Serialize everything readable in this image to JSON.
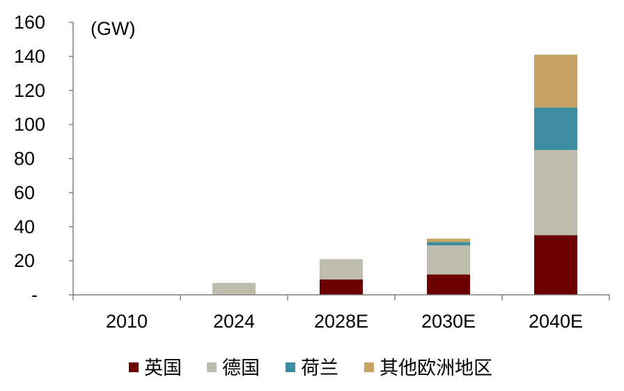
{
  "chart_data": {
    "type": "bar",
    "stacked": true,
    "unit_label": "(GW)",
    "categories": [
      "2010",
      "2024",
      "2028E",
      "2030E",
      "2040E"
    ],
    "y_tick_labels": [
      "-",
      "20",
      "40",
      "60",
      "80",
      "100",
      "120",
      "140",
      "160"
    ],
    "ylim": [
      0,
      160
    ],
    "grid": false,
    "legend_position": "bottom",
    "series": [
      {
        "name": "英国",
        "color": "#6B0000",
        "values": [
          0,
          0,
          9,
          12,
          35
        ]
      },
      {
        "name": "德国",
        "color": "#BEBDAE",
        "values": [
          0,
          7,
          12,
          17,
          50
        ]
      },
      {
        "name": "荷兰",
        "color": "#3E8CA0",
        "values": [
          0,
          0,
          0,
          2,
          25
        ]
      },
      {
        "name": "其他欧洲地区",
        "color": "#C6A466",
        "values": [
          0,
          0,
          0,
          2,
          31
        ]
      }
    ]
  }
}
